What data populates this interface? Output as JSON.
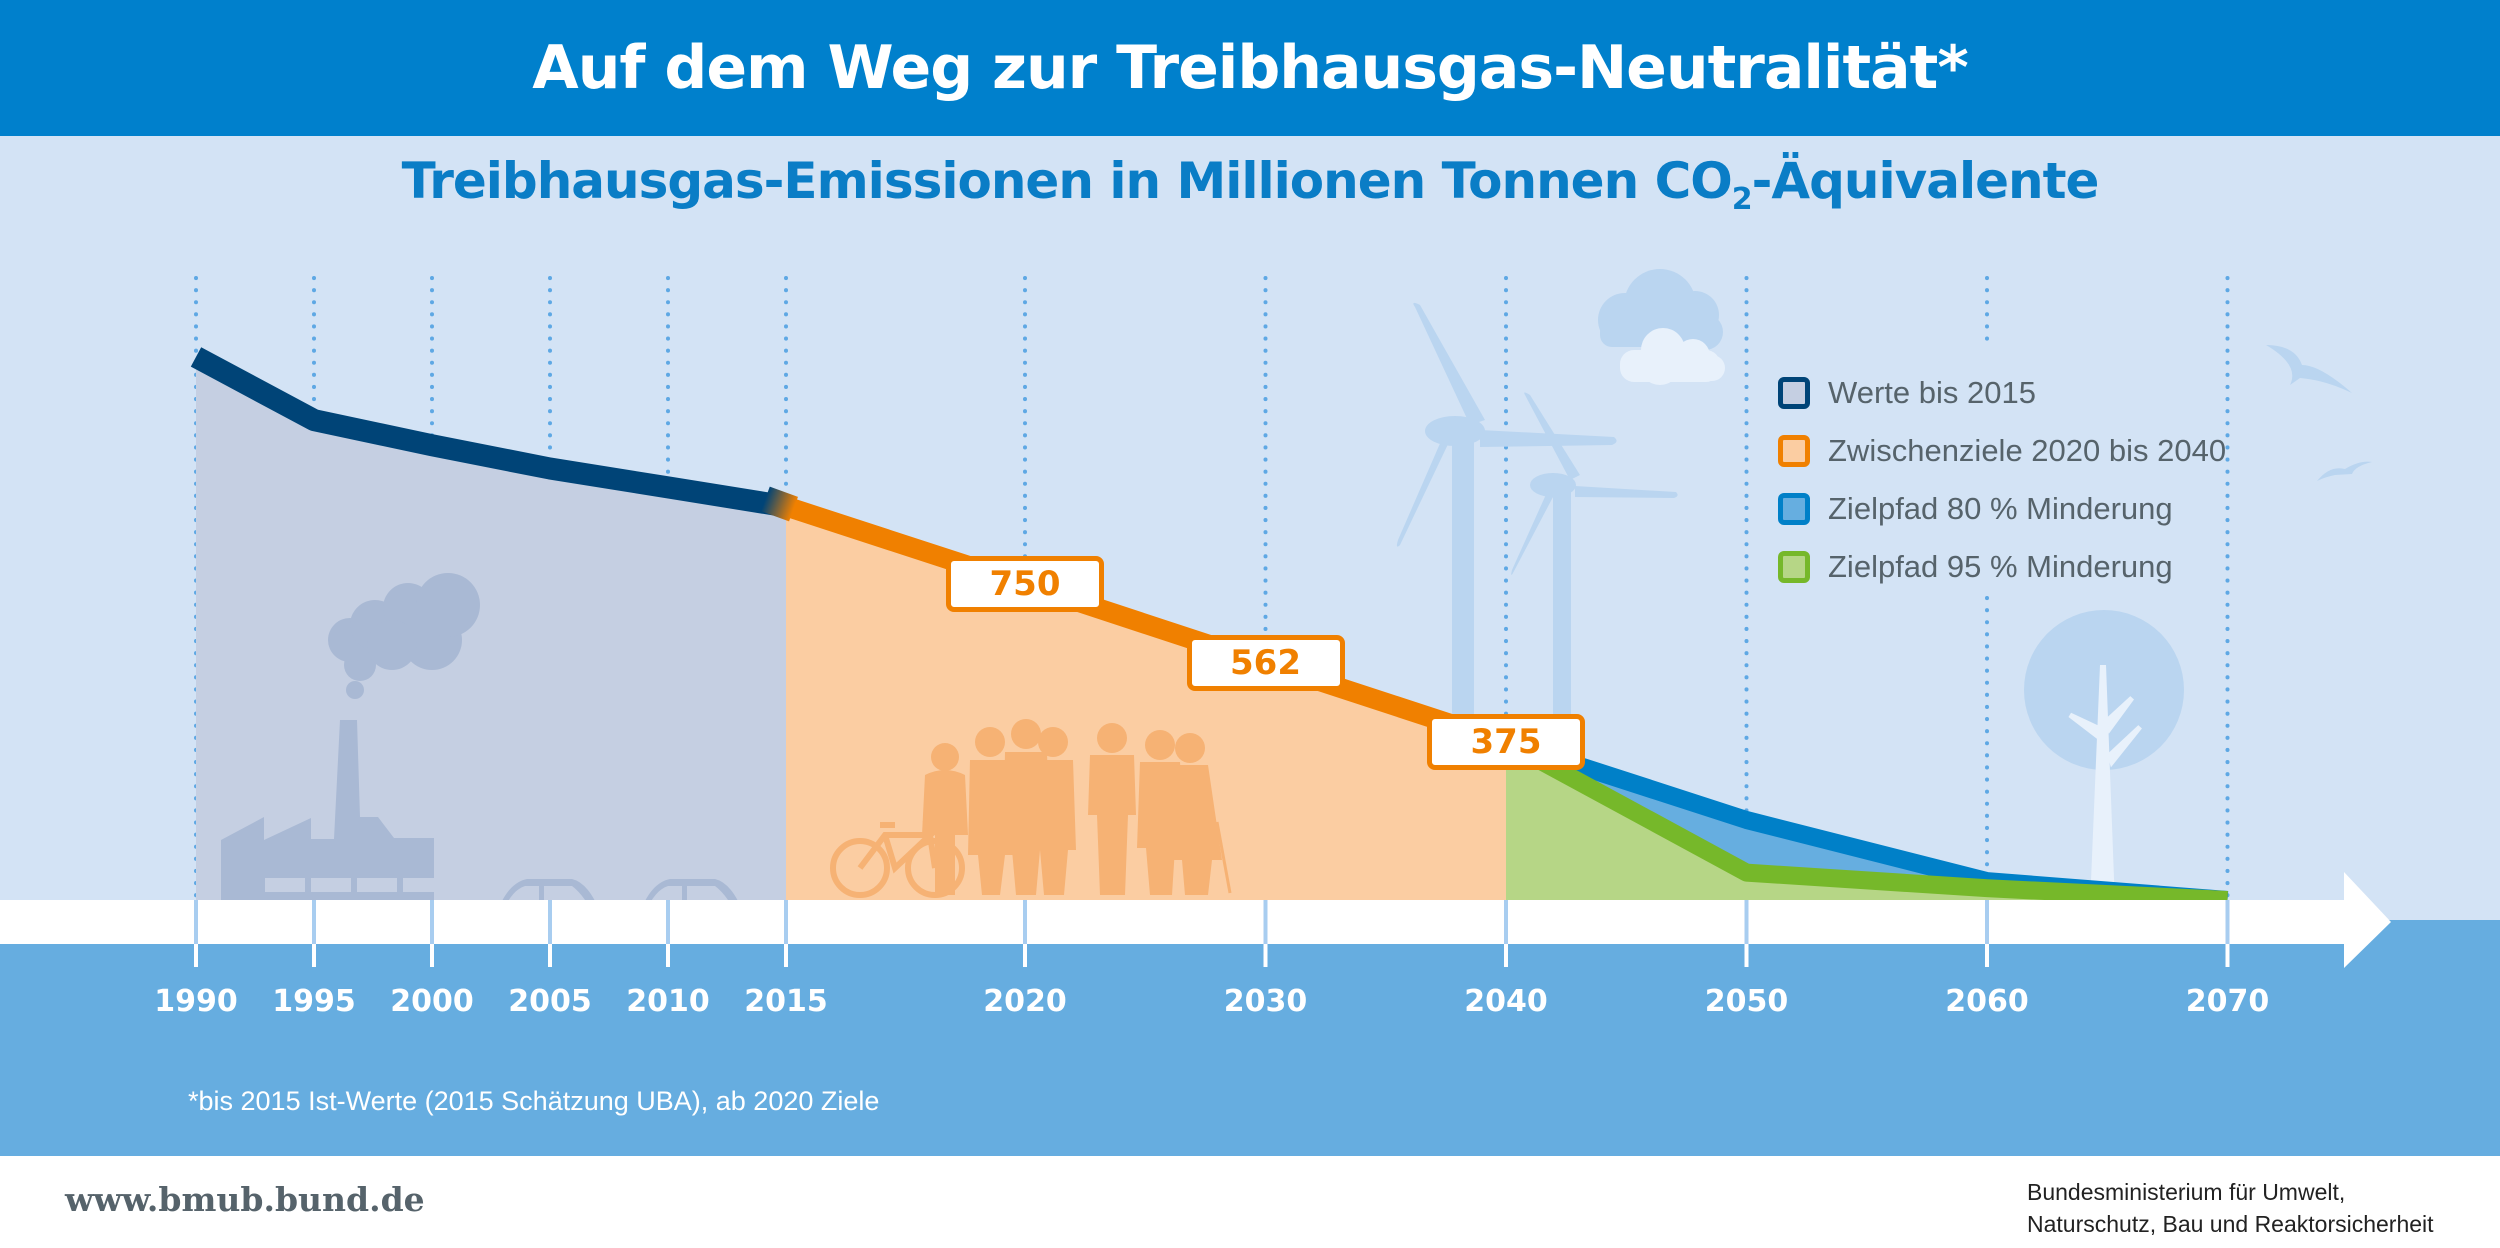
{
  "header": {
    "title": "Auf dem Weg zur Treibhausgas-Neutralität*",
    "subtitle_main": "Treibhausgas-Emissionen in Millionen Tonnen CO",
    "subtitle_sub": "2",
    "subtitle_tail": "-Äquivalente"
  },
  "footnote": "*bis 2015 Ist-Werte (2015 Schätzung UBA), ab 2020 Ziele",
  "footer": {
    "url": "www.bmub.bund.de",
    "ministry_line1": "Bundesministerium für Umwelt,",
    "ministry_line2": "Naturschutz, Bau und Reaktorsicherheit"
  },
  "colors": {
    "header_blue": "#0080cc",
    "historic": "#004477",
    "historic_fill": "#c5cfe2",
    "interim": "#f08000",
    "interim_fill": "#fbcda2",
    "path80": "#0080c8",
    "path80_fill": "#66aee0",
    "path95": "#76b82a",
    "path95_fill": "#b6d686"
  },
  "illustrations": [
    "factory-icon",
    "smoke-icon",
    "car-icon",
    "car-icon",
    "bicycle-icon",
    "people-icon",
    "wind-turbine-icon",
    "wind-turbine-icon",
    "cloud-icon",
    "cloud-icon",
    "tree-icon",
    "bird-icon",
    "bird-icon"
  ],
  "chart_data": {
    "type": "area",
    "title": "Treibhausgas-Emissionen in Millionen Tonnen CO2-Äquivalente",
    "xlabel": "",
    "ylabel": "Millionen Tonnen CO2-Äquivalente",
    "x_ticks": [
      "1990",
      "1995",
      "2000",
      "2005",
      "2010",
      "2015",
      "2020",
      "2030",
      "2040",
      "2050",
      "2060",
      "2070"
    ],
    "ylim": [
      0,
      1300
    ],
    "grid": "vertical dotted lines at each year tick",
    "legend_position": "top-right",
    "legend": [
      {
        "label": "Werte bis 2015",
        "series": "historic"
      },
      {
        "label": "Zwischenziele 2020 bis 2040",
        "series": "interim"
      },
      {
        "label": "Zielpfad 80 % Minderung",
        "series": "path80"
      },
      {
        "label": "Zielpfad 95 % Minderung",
        "series": "path95"
      }
    ],
    "series": [
      {
        "name": "historic",
        "label": "Werte bis 2015",
        "x": [
          1990,
          1995,
          2000,
          2005,
          2010,
          2015
        ],
        "values": [
          1290,
          1140,
          1080,
          1025,
          980,
          935
        ]
      },
      {
        "name": "interim",
        "label": "Zwischenziele 2020 bis 2040",
        "x": [
          2015,
          2020,
          2030,
          2040
        ],
        "values": [
          935,
          750,
          562,
          375
        ]
      },
      {
        "name": "path80",
        "label": "Zielpfad 80 % Minderung",
        "x": [
          2040,
          2050,
          2060,
          2070
        ],
        "values": [
          375,
          190,
          45,
          0
        ]
      },
      {
        "name": "path95",
        "label": "Zielpfad 95 % Minderung",
        "x": [
          2040,
          2050,
          2060,
          2070
        ],
        "values": [
          375,
          65,
          28,
          0
        ]
      }
    ],
    "data_labels": [
      {
        "x": 2020,
        "value": "750"
      },
      {
        "x": 2030,
        "value": "562"
      },
      {
        "x": 2040,
        "value": "375"
      }
    ]
  }
}
